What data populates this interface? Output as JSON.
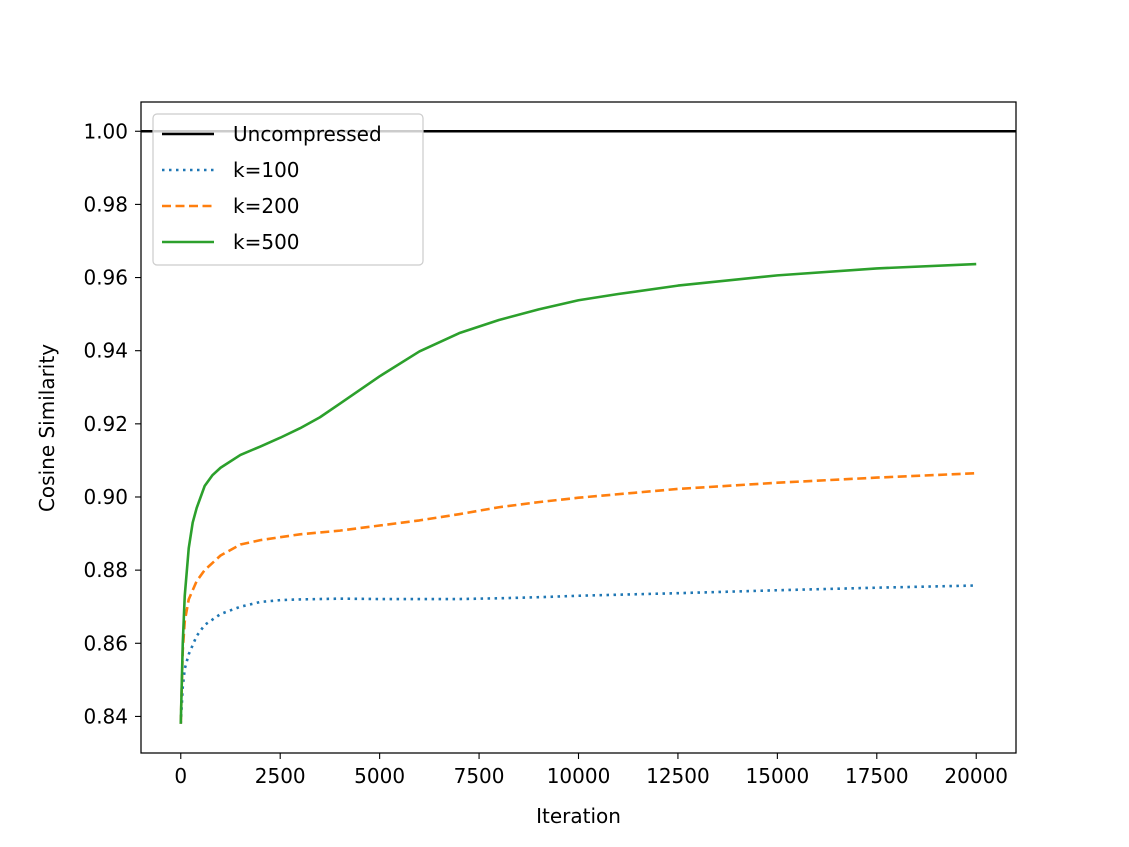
{
  "chart_data": {
    "type": "line",
    "title": "",
    "xlabel": "Iteration",
    "ylabel": "Cosine Similarity",
    "xlim": [
      -1000,
      21000
    ],
    "ylim": [
      0.83,
      1.008
    ],
    "xticks": [
      0,
      2500,
      5000,
      7500,
      10000,
      12500,
      15000,
      17500,
      20000
    ],
    "xtick_labels": [
      "0",
      "2500",
      "5000",
      "7500",
      "10000",
      "12500",
      "15000",
      "17500",
      "20000"
    ],
    "yticks": [
      0.84,
      0.86,
      0.88,
      0.9,
      0.92,
      0.94,
      0.96,
      0.98,
      1.0
    ],
    "ytick_labels": [
      "0.84",
      "0.86",
      "0.88",
      "0.90",
      "0.92",
      "0.94",
      "0.96",
      "0.98",
      "1.00"
    ],
    "grid": false,
    "legend_position": "top-left",
    "series": [
      {
        "name": "Uncompressed",
        "color": "#000000",
        "style": "solid",
        "hline": 1.0
      },
      {
        "name": "k=100",
        "color": "#1f77b4",
        "style": "dotted",
        "x": [
          0,
          50,
          100,
          200,
          400,
          600,
          1000,
          1500,
          2000,
          2500,
          3000,
          4000,
          5000,
          6000,
          7000,
          8000,
          9000,
          10000,
          12500,
          15000,
          17500,
          20000
        ],
        "y": [
          0.838,
          0.848,
          0.853,
          0.857,
          0.862,
          0.865,
          0.868,
          0.87,
          0.8713,
          0.8718,
          0.872,
          0.8722,
          0.8721,
          0.8721,
          0.8721,
          0.8723,
          0.8726,
          0.873,
          0.8737,
          0.8745,
          0.8752,
          0.8758
        ]
      },
      {
        "name": "k=200",
        "color": "#ff7f0e",
        "style": "dashed",
        "x": [
          0,
          50,
          100,
          200,
          400,
          600,
          1000,
          1500,
          2000,
          2500,
          3000,
          4000,
          5000,
          6000,
          7000,
          8000,
          9000,
          10000,
          12500,
          15000,
          17500,
          20000
        ],
        "y": [
          0.838,
          0.858,
          0.866,
          0.872,
          0.877,
          0.88,
          0.884,
          0.887,
          0.8882,
          0.889,
          0.8898,
          0.8908,
          0.8922,
          0.8936,
          0.8953,
          0.8972,
          0.8986,
          0.8998,
          0.9022,
          0.9039,
          0.9053,
          0.9065
        ]
      },
      {
        "name": "k=500",
        "color": "#2ca02c",
        "style": "solid",
        "x": [
          0,
          50,
          100,
          200,
          300,
          400,
          600,
          800,
          1000,
          1500,
          2000,
          2500,
          3000,
          3500,
          4000,
          5000,
          6000,
          7000,
          8000,
          9000,
          10000,
          11000,
          12500,
          15000,
          17500,
          20000
        ],
        "y": [
          0.838,
          0.86,
          0.873,
          0.886,
          0.893,
          0.897,
          0.903,
          0.906,
          0.908,
          0.9115,
          0.9138,
          0.9162,
          0.9188,
          0.9218,
          0.9255,
          0.933,
          0.9398,
          0.9448,
          0.9484,
          0.9513,
          0.9538,
          0.9555,
          0.9578,
          0.9606,
          0.9625,
          0.9637
        ]
      }
    ]
  }
}
